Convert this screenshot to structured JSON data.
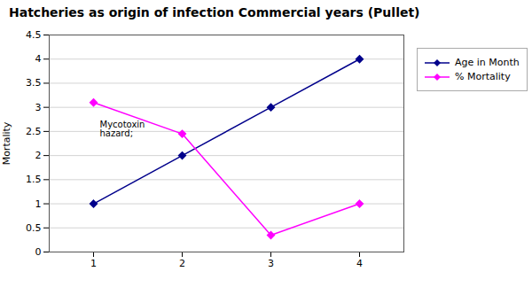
{
  "chart_data": {
    "type": "line",
    "title": "Hatcheries as origin of infection Commercial years (Pullet)",
    "ylabel": "Mortality",
    "x": [
      1,
      2,
      3,
      4
    ],
    "series": [
      {
        "name": "Age in Month",
        "color": "#00008B",
        "values": [
          1,
          2,
          3,
          4
        ],
        "marker": "diamond"
      },
      {
        "name": "% Mortality",
        "color": "#FF00FF",
        "values": [
          3.1,
          2.45,
          0.35,
          1.0
        ],
        "marker": "diamond"
      }
    ],
    "xlim": [
      0.5,
      4.5
    ],
    "ylim": [
      0,
      4.5
    ],
    "xticks": [
      1,
      2,
      3,
      4
    ],
    "yticks": [
      0,
      0.5,
      1,
      1.5,
      2,
      2.5,
      3,
      3.5,
      4,
      4.5
    ],
    "grid": true,
    "legend": "right",
    "annotations": [
      {
        "text": "Mycotoxin\nhazard;",
        "x": 1.05,
        "y": 2.72
      }
    ]
  }
}
